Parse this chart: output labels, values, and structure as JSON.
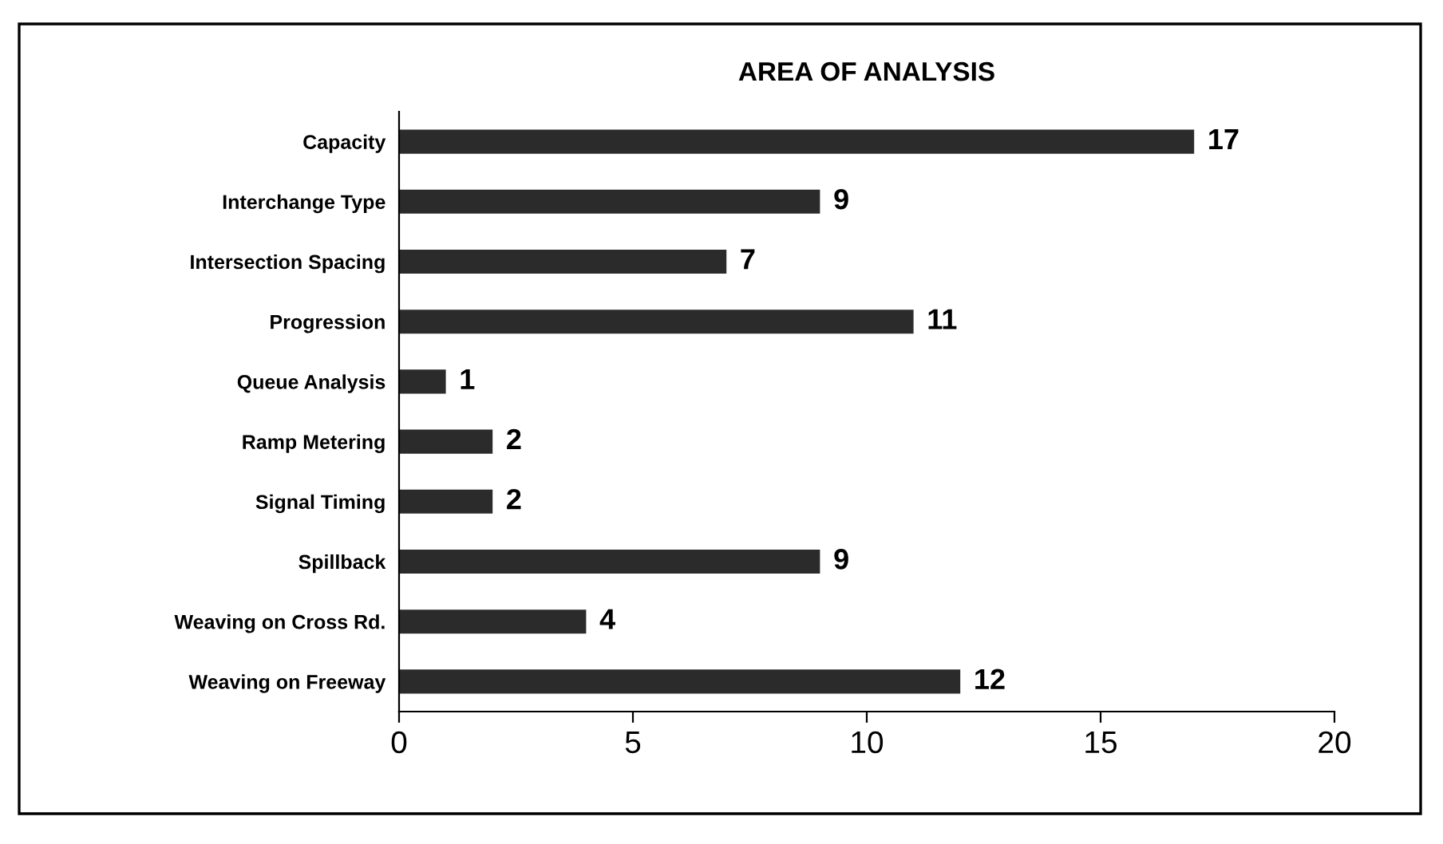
{
  "chart_data": {
    "type": "bar",
    "orientation": "horizontal",
    "title": "AREA OF ANALYSIS",
    "categories": [
      "Capacity",
      "Interchange Type",
      "Intersection Spacing",
      "Progression",
      "Queue Analysis",
      "Ramp Metering",
      "Signal Timing",
      "Spillback",
      "Weaving on Cross Rd.",
      "Weaving on Freeway"
    ],
    "values": [
      17,
      9,
      7,
      11,
      1,
      2,
      2,
      9,
      4,
      12
    ],
    "color": "#2b2b2b",
    "xlim": [
      0,
      20
    ],
    "xticks": [
      0,
      5,
      10,
      15,
      20
    ],
    "grid": false,
    "data_labels": true
  }
}
